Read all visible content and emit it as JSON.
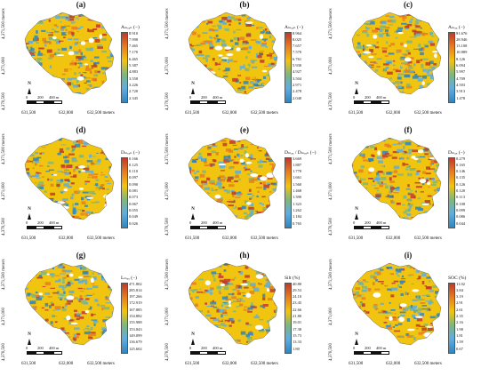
{
  "panels": [
    {
      "label": "(a)",
      "legend_title": "Aₘₑₐₙ (−)",
      "ticks": [
        "8.910",
        "7.998",
        "7.465",
        "7.170",
        "6.465",
        "5.387",
        "4.883",
        "3.558",
        "3.226",
        "2.720",
        "2.345"
      ],
      "colors": {
        "high": "#c0392b",
        "mid": "#f1c40f",
        "low": "#2e86c1"
      }
    },
    {
      "label": "(b)",
      "legend_title": "Aₘₑₐₙ (−)",
      "ticks": [
        "8.964",
        "8.025",
        "7.657",
        "7.570",
        "6.761",
        "5.930",
        "4.927",
        "3.504",
        "2.971",
        "2.478",
        "2.040"
      ],
      "colors": {
        "high": "#c0392b",
        "mid": "#f1c40f",
        "low": "#2e86c1"
      }
    },
    {
      "label": "(c)",
      "legend_title": "Aₘₐₓ (−)",
      "ticks": [
        "81.676",
        "28.946",
        "13.108",
        "10.889",
        "8.126",
        "6.094",
        "5.997",
        "4.709",
        "4.503",
        "3.913",
        "1.478"
      ],
      "colors": {
        "high": "#c0392b",
        "mid": "#f1c40f",
        "low": "#2e86c1"
      }
    },
    {
      "label": "(d)",
      "legend_title": "Dₘₑₐₙ (−)",
      "ticks": [
        "0.166",
        "0.125",
        "0.110",
        "0.097",
        "0.090",
        "0.081",
        "0.073",
        "0.067",
        "0.055",
        "0.049",
        "0.026"
      ],
      "colors": {
        "high": "#c0392b",
        "mid": "#f1c40f",
        "low": "#2e86c1"
      }
    },
    {
      "label": "(e)",
      "legend_title": "Dₘₐₓ / Dₘₑₐₙ (−)",
      "ticks": [
        "3.669",
        "1.887",
        "1.770",
        "1.661",
        "1.560",
        "1.468",
        "1.390",
        "1.323",
        "1.262",
        "1.184",
        "0.765"
      ],
      "colors": {
        "high": "#c0392b",
        "mid": "#f1c40f",
        "low": "#2e86c1"
      }
    },
    {
      "label": "(f)",
      "legend_title": "Dₘₐₓ (−)",
      "ticks": [
        "0.279",
        "0.165",
        "0.146",
        "0.135",
        "0.126",
        "0.120",
        "0.113",
        "0.108",
        "0.099",
        "0.086",
        "0.044"
      ],
      "colors": {
        "high": "#c0392b",
        "mid": "#f1c40f",
        "low": "#2e86c1"
      }
    },
    {
      "label": "(g)",
      "legend_title": "Lₘₐₓ (−)",
      "ticks": [
        "471.802",
        "285.814",
        "197.266",
        "172.919",
        "167.885",
        "154.882",
        "155.988",
        "153.843",
        "149.099",
        "136.679",
        "125.602"
      ],
      "colors": {
        "high": "#c0392b",
        "mid": "#f1c40f",
        "low": "#2e86c1"
      }
    },
    {
      "label": "(h)",
      "legend_title": "Silt (%)",
      "ticks": [
        "40.80",
        "29.53",
        "24.10",
        "23.45",
        "22.66",
        "21.80",
        "19.01",
        "17.38",
        "15.73",
        "13.33",
        "1.80"
      ],
      "colors": {
        "high": "#c0392b",
        "mid": "#f1c40f",
        "low": "#2e86c1"
      }
    },
    {
      "label": "(i)",
      "legend_title": "SOC (%)",
      "ticks": [
        "11.02",
        "3.84",
        "3.19",
        "2.91",
        "2.61",
        "2.35",
        "2.16",
        "1.98",
        "1.81",
        "1.59",
        "0.67"
      ],
      "colors": {
        "high": "#c0392b",
        "mid": "#f1c40f",
        "low": "#2e86c1"
      }
    }
  ],
  "axes": {
    "y_top": "4,371,500 meters",
    "y_mid": "4,371,000",
    "y_bot": "4,370,500",
    "x_ticks": [
      "631,500",
      "632,000",
      "632,500 meters"
    ]
  },
  "north_label": "N",
  "scale": {
    "t0": "0",
    "t1": "200",
    "t2": "400 m"
  }
}
